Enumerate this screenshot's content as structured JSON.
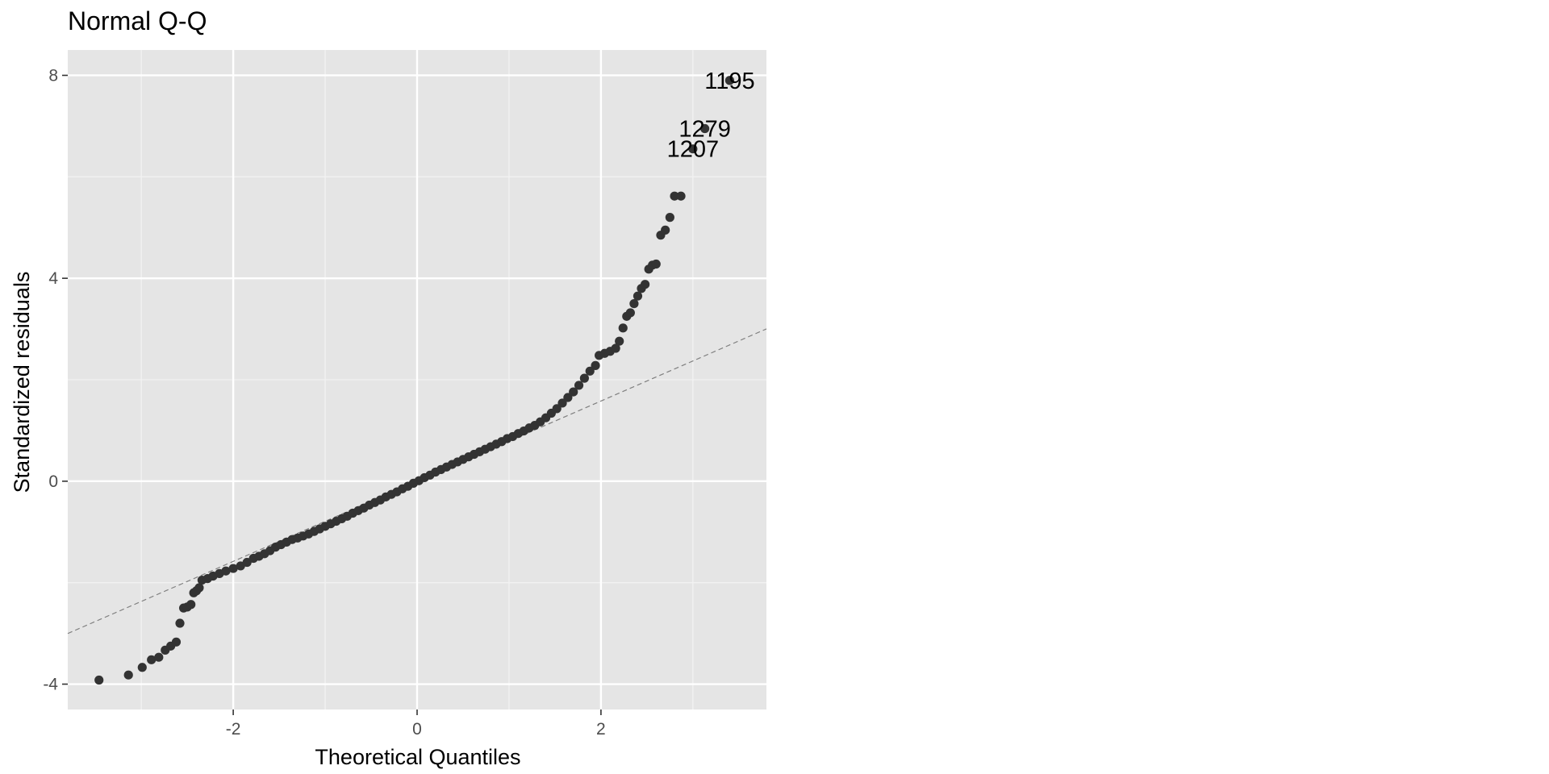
{
  "chart_data": {
    "type": "scatter",
    "title": "Normal Q-Q",
    "xlabel": "Theoretical Quantiles",
    "ylabel": "Standardized residuals",
    "xlim": [
      -3.8,
      3.8
    ],
    "ylim": [
      -4.5,
      8.5
    ],
    "x_ticks": [
      -2,
      0,
      2
    ],
    "x_tick_labels": [
      "-2",
      "0",
      "2"
    ],
    "y_ticks": [
      -4,
      0,
      4,
      8
    ],
    "y_tick_labels": [
      "-4",
      "0",
      "4",
      "8"
    ],
    "grid": true,
    "panel_color": "#e5e5e5",
    "point_color": "#333333",
    "reference_line": {
      "slope": 0.79,
      "intercept": 0.0,
      "style": "dashed",
      "color": "#7f7f7f"
    },
    "points": [
      {
        "x": -3.46,
        "y": -3.92
      },
      {
        "x": -3.14,
        "y": -3.82
      },
      {
        "x": -2.99,
        "y": -3.67
      },
      {
        "x": -2.89,
        "y": -3.52
      },
      {
        "x": -2.81,
        "y": -3.47
      },
      {
        "x": -2.74,
        "y": -3.33
      },
      {
        "x": -2.68,
        "y": -3.25
      },
      {
        "x": -2.62,
        "y": -3.17
      },
      {
        "x": -2.58,
        "y": -2.8
      },
      {
        "x": -2.54,
        "y": -2.5
      },
      {
        "x": -2.5,
        "y": -2.48
      },
      {
        "x": -2.46,
        "y": -2.43
      },
      {
        "x": -2.43,
        "y": -2.2
      },
      {
        "x": -2.4,
        "y": -2.16
      },
      {
        "x": -2.37,
        "y": -2.1
      },
      {
        "x": -2.34,
        "y": -1.95
      },
      {
        "x": -2.28,
        "y": -1.92
      },
      {
        "x": -2.22,
        "y": -1.87
      },
      {
        "x": -2.15,
        "y": -1.82
      },
      {
        "x": -2.08,
        "y": -1.77
      },
      {
        "x": -2.0,
        "y": -1.72
      },
      {
        "x": -1.92,
        "y": -1.67
      },
      {
        "x": -1.85,
        "y": -1.6
      },
      {
        "x": -1.78,
        "y": -1.52
      },
      {
        "x": -1.72,
        "y": -1.48
      },
      {
        "x": -1.66,
        "y": -1.43
      },
      {
        "x": -1.6,
        "y": -1.37
      },
      {
        "x": -1.54,
        "y": -1.3
      },
      {
        "x": -1.48,
        "y": -1.25
      },
      {
        "x": -1.42,
        "y": -1.2
      },
      {
        "x": -1.36,
        "y": -1.15
      },
      {
        "x": -1.3,
        "y": -1.12
      },
      {
        "x": -1.24,
        "y": -1.08
      },
      {
        "x": -1.18,
        "y": -1.04
      },
      {
        "x": -1.12,
        "y": -0.99
      },
      {
        "x": -1.06,
        "y": -0.94
      },
      {
        "x": -1.0,
        "y": -0.89
      },
      {
        "x": -0.94,
        "y": -0.84
      },
      {
        "x": -0.88,
        "y": -0.79
      },
      {
        "x": -0.82,
        "y": -0.74
      },
      {
        "x": -0.76,
        "y": -0.69
      },
      {
        "x": -0.7,
        "y": -0.63
      },
      {
        "x": -0.64,
        "y": -0.58
      },
      {
        "x": -0.58,
        "y": -0.53
      },
      {
        "x": -0.52,
        "y": -0.47
      },
      {
        "x": -0.46,
        "y": -0.42
      },
      {
        "x": -0.4,
        "y": -0.37
      },
      {
        "x": -0.34,
        "y": -0.31
      },
      {
        "x": -0.28,
        "y": -0.26
      },
      {
        "x": -0.22,
        "y": -0.21
      },
      {
        "x": -0.16,
        "y": -0.15
      },
      {
        "x": -0.1,
        "y": -0.1
      },
      {
        "x": -0.04,
        "y": -0.04
      },
      {
        "x": 0.02,
        "y": 0.01
      },
      {
        "x": 0.08,
        "y": 0.07
      },
      {
        "x": 0.14,
        "y": 0.12
      },
      {
        "x": 0.2,
        "y": 0.18
      },
      {
        "x": 0.26,
        "y": 0.23
      },
      {
        "x": 0.32,
        "y": 0.28
      },
      {
        "x": 0.38,
        "y": 0.33
      },
      {
        "x": 0.44,
        "y": 0.38
      },
      {
        "x": 0.5,
        "y": 0.43
      },
      {
        "x": 0.56,
        "y": 0.48
      },
      {
        "x": 0.62,
        "y": 0.53
      },
      {
        "x": 0.68,
        "y": 0.58
      },
      {
        "x": 0.74,
        "y": 0.63
      },
      {
        "x": 0.8,
        "y": 0.68
      },
      {
        "x": 0.86,
        "y": 0.73
      },
      {
        "x": 0.92,
        "y": 0.78
      },
      {
        "x": 0.98,
        "y": 0.84
      },
      {
        "x": 1.04,
        "y": 0.88
      },
      {
        "x": 1.1,
        "y": 0.94
      },
      {
        "x": 1.16,
        "y": 0.99
      },
      {
        "x": 1.22,
        "y": 1.05
      },
      {
        "x": 1.28,
        "y": 1.1
      },
      {
        "x": 1.34,
        "y": 1.17
      },
      {
        "x": 1.4,
        "y": 1.25
      },
      {
        "x": 1.46,
        "y": 1.34
      },
      {
        "x": 1.52,
        "y": 1.43
      },
      {
        "x": 1.58,
        "y": 1.54
      },
      {
        "x": 1.64,
        "y": 1.65
      },
      {
        "x": 1.7,
        "y": 1.76
      },
      {
        "x": 1.76,
        "y": 1.89
      },
      {
        "x": 1.82,
        "y": 2.03
      },
      {
        "x": 1.88,
        "y": 2.17
      },
      {
        "x": 1.94,
        "y": 2.28
      },
      {
        "x": 1.98,
        "y": 2.48
      },
      {
        "x": 2.04,
        "y": 2.52
      },
      {
        "x": 2.1,
        "y": 2.56
      },
      {
        "x": 2.16,
        "y": 2.62
      },
      {
        "x": 2.2,
        "y": 2.76
      },
      {
        "x": 2.24,
        "y": 3.02
      },
      {
        "x": 2.28,
        "y": 3.25
      },
      {
        "x": 2.32,
        "y": 3.32
      },
      {
        "x": 2.36,
        "y": 3.5
      },
      {
        "x": 2.4,
        "y": 3.65
      },
      {
        "x": 2.44,
        "y": 3.8
      },
      {
        "x": 2.48,
        "y": 3.88
      },
      {
        "x": 2.52,
        "y": 4.18
      },
      {
        "x": 2.56,
        "y": 4.26
      },
      {
        "x": 2.6,
        "y": 4.28
      },
      {
        "x": 2.65,
        "y": 4.85
      },
      {
        "x": 2.7,
        "y": 4.95
      },
      {
        "x": 2.75,
        "y": 5.2
      },
      {
        "x": 2.8,
        "y": 5.62
      },
      {
        "x": 2.87,
        "y": 5.62
      },
      {
        "x": 3.0,
        "y": 6.55
      },
      {
        "x": 3.13,
        "y": 6.95
      },
      {
        "x": 3.4,
        "y": 7.9
      }
    ],
    "point_labels": [
      {
        "text": "1195",
        "x": 3.4,
        "y": 7.9
      },
      {
        "text": "1279",
        "x": 3.13,
        "y": 6.95
      },
      {
        "text": "1207",
        "x": 3.0,
        "y": 6.55
      }
    ]
  }
}
